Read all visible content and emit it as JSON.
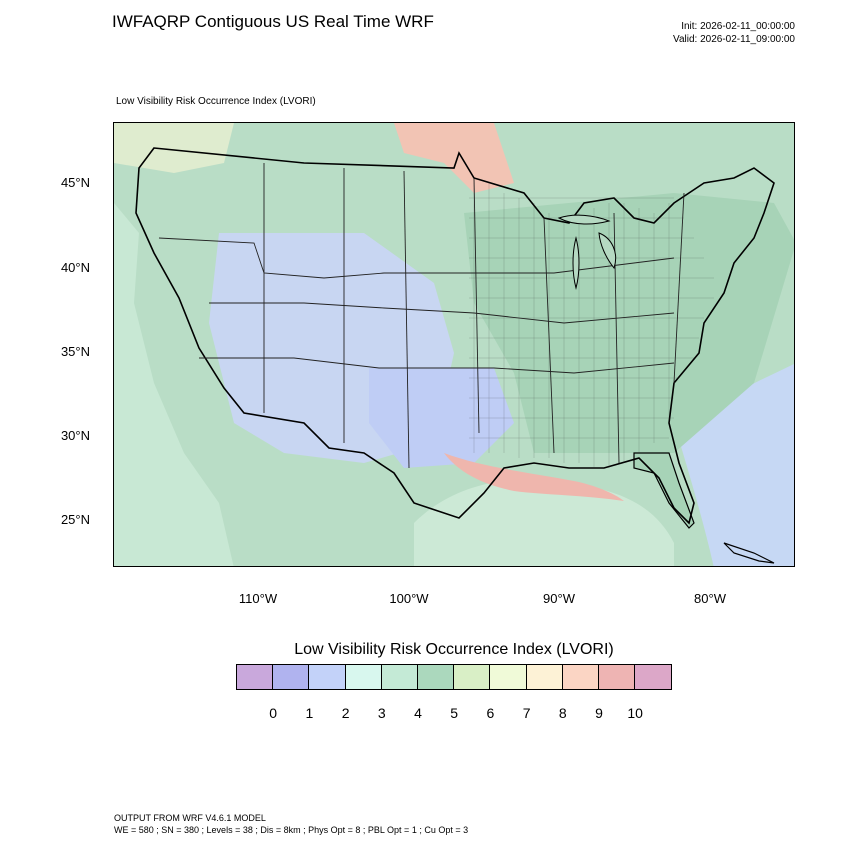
{
  "header": {
    "title": "IWFAQRP Contiguous US Real Time WRF",
    "init": "Init: 2026-02-11_00:00:00",
    "valid": "Valid: 2026-02-11_09:00:00"
  },
  "map": {
    "field_label": "Low Visibility Risk Occurrence Index   (LVORI)",
    "lat_labels": [
      "45°N",
      "40°N",
      "35°N",
      "30°N",
      "25°N"
    ],
    "lon_labels": [
      "110°W",
      "100°W",
      "90°W",
      "80°W"
    ]
  },
  "legend": {
    "title": "Low Visibility Risk Occurrence Index  (LVORI)",
    "labels": [
      "0",
      "1",
      "2",
      "3",
      "4",
      "5",
      "6",
      "7",
      "8",
      "9",
      "10"
    ],
    "colors": [
      "#c9a8dc",
      "#b0b3ef",
      "#c3d2f9",
      "#d8f7ee",
      "#c4ead6",
      "#abd8bd",
      "#d9efc6",
      "#f0fad8",
      "#fdf2d6",
      "#fbd5c4",
      "#eeb4b3",
      "#dca7c8"
    ]
  },
  "footer": {
    "line1": "OUTPUT FROM WRF V4.6.1 MODEL",
    "line2": "WE = 580 ; SN = 380 ; Levels = 38 ; Dis = 8km ; Phys Opt = 8 ; PBL Opt = 1 ; Cu Opt = 3"
  }
}
